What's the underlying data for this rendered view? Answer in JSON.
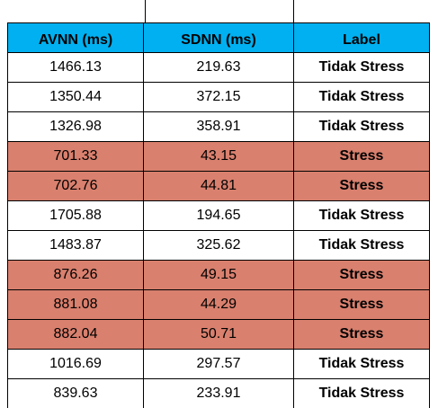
{
  "table": {
    "headers": [
      "AVNN (ms)",
      "SDNN (ms)",
      "Label"
    ],
    "rows": [
      {
        "avnn": "1466.13",
        "sdnn": "219.63",
        "label": "Tidak Stress",
        "stress": false
      },
      {
        "avnn": "1350.44",
        "sdnn": "372.15",
        "label": "Tidak Stress",
        "stress": false
      },
      {
        "avnn": "1326.98",
        "sdnn": "358.91",
        "label": "Tidak Stress",
        "stress": false
      },
      {
        "avnn": "701.33",
        "sdnn": "43.15",
        "label": "Stress",
        "stress": true
      },
      {
        "avnn": "702.76",
        "sdnn": "44.81",
        "label": "Stress",
        "stress": true
      },
      {
        "avnn": "1705.88",
        "sdnn": "194.65",
        "label": "Tidak Stress",
        "stress": false
      },
      {
        "avnn": "1483.87",
        "sdnn": "325.62",
        "label": "Tidak Stress",
        "stress": false
      },
      {
        "avnn": "876.26",
        "sdnn": "49.15",
        "label": "Stress",
        "stress": true
      },
      {
        "avnn": "881.08",
        "sdnn": "44.29",
        "label": "Stress",
        "stress": true
      },
      {
        "avnn": "882.04",
        "sdnn": "50.71",
        "label": "Stress",
        "stress": true
      },
      {
        "avnn": "1016.69",
        "sdnn": "297.57",
        "label": "Tidak Stress",
        "stress": false
      },
      {
        "avnn": "839.63",
        "sdnn": "233.91",
        "label": "Tidak Stress",
        "stress": false
      }
    ]
  },
  "colors": {
    "header_bg": "#00b0f0",
    "stress_bg": "#d9806e",
    "normal_bg": "#ffffff",
    "border": "#000000"
  }
}
